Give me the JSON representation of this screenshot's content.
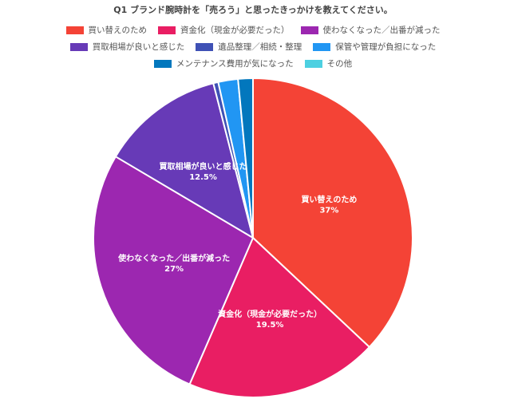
{
  "chart_data": {
    "type": "pie",
    "title": "Q1 ブランド腕時計を「売ろう」と思ったきっかけを教えてください。",
    "legend_position": "top",
    "slices": [
      {
        "name": "買い替えのため",
        "value": 37,
        "color": "#f44336",
        "label": "買い替えのため",
        "pct_label": "37%"
      },
      {
        "name": "資金化（現金が必要だった）",
        "value": 19.5,
        "color": "#e91e63",
        "label": "資金化（現金が必要だった）",
        "pct_label": "19.5%"
      },
      {
        "name": "使わなくなった／出番が減った",
        "value": 27,
        "color": "#9c27b0",
        "label": "使わなくなった／出番が減った",
        "pct_label": "27%"
      },
      {
        "name": "買取相場が良いと感じた",
        "value": 12.5,
        "color": "#673ab7",
        "label": "買取相場が良いと感じた",
        "pct_label": "12.5%"
      },
      {
        "name": "遺品整理／相続・整理",
        "value": 0.5,
        "color": "#3f51b5",
        "label": "",
        "pct_label": ""
      },
      {
        "name": "保管や管理が負担になった",
        "value": 2,
        "color": "#2196f3",
        "label": "",
        "pct_label": ""
      },
      {
        "name": "メンテナンス費用が気になった",
        "value": 1.5,
        "color": "#0277bd",
        "label": "",
        "pct_label": ""
      },
      {
        "name": "その他",
        "value": 0,
        "color": "#4dd0e1",
        "label": "",
        "pct_label": ""
      }
    ]
  }
}
